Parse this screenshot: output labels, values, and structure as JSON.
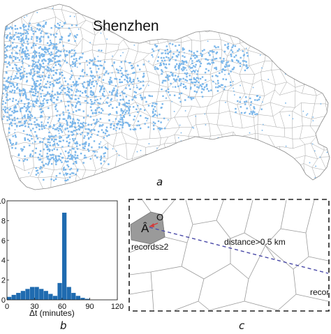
{
  "panel_a": {
    "city_label": "Shenzhen",
    "panel_letter": "a",
    "colors": {
      "record_dot": "#7ab6ea",
      "cell_edge": "#9a9a9a"
    }
  },
  "panel_b": {
    "panel_letter": "b",
    "chart_data": {
      "type": "bar",
      "xlabel": "Δt (minutes)",
      "ylabel": "",
      "x_ticks": [
        "0",
        "30",
        "60",
        "90",
        "120"
      ],
      "y_ticks": [
        "0",
        "2",
        "4",
        "6",
        "8",
        "10"
      ],
      "xlim": [
        0,
        120
      ],
      "ylim": [
        0,
        10
      ],
      "bin_width": 5,
      "bins_start": [
        0,
        5,
        10,
        15,
        20,
        25,
        30,
        35,
        40,
        45,
        50,
        55,
        60,
        65,
        70,
        75,
        80,
        85
      ],
      "values": [
        0.3,
        0.5,
        0.7,
        0.9,
        1.1,
        1.3,
        1.3,
        1.1,
        0.9,
        0.6,
        0.4,
        1.7,
        8.8,
        1.3,
        0.7,
        0.4,
        0.2,
        0.1
      ],
      "color": "#1f6bb0"
    }
  },
  "panel_c": {
    "panel_letter": "c",
    "cell_marker": "Â",
    "origin_label": "O",
    "records_label": "records≥2",
    "distance_label": "distance>0.5 km",
    "right_label": "recor",
    "colors": {
      "highlight_cell": "#9a9a9a",
      "dashed_line": "#4a4aa8",
      "arrow": "#d43a3a"
    }
  }
}
